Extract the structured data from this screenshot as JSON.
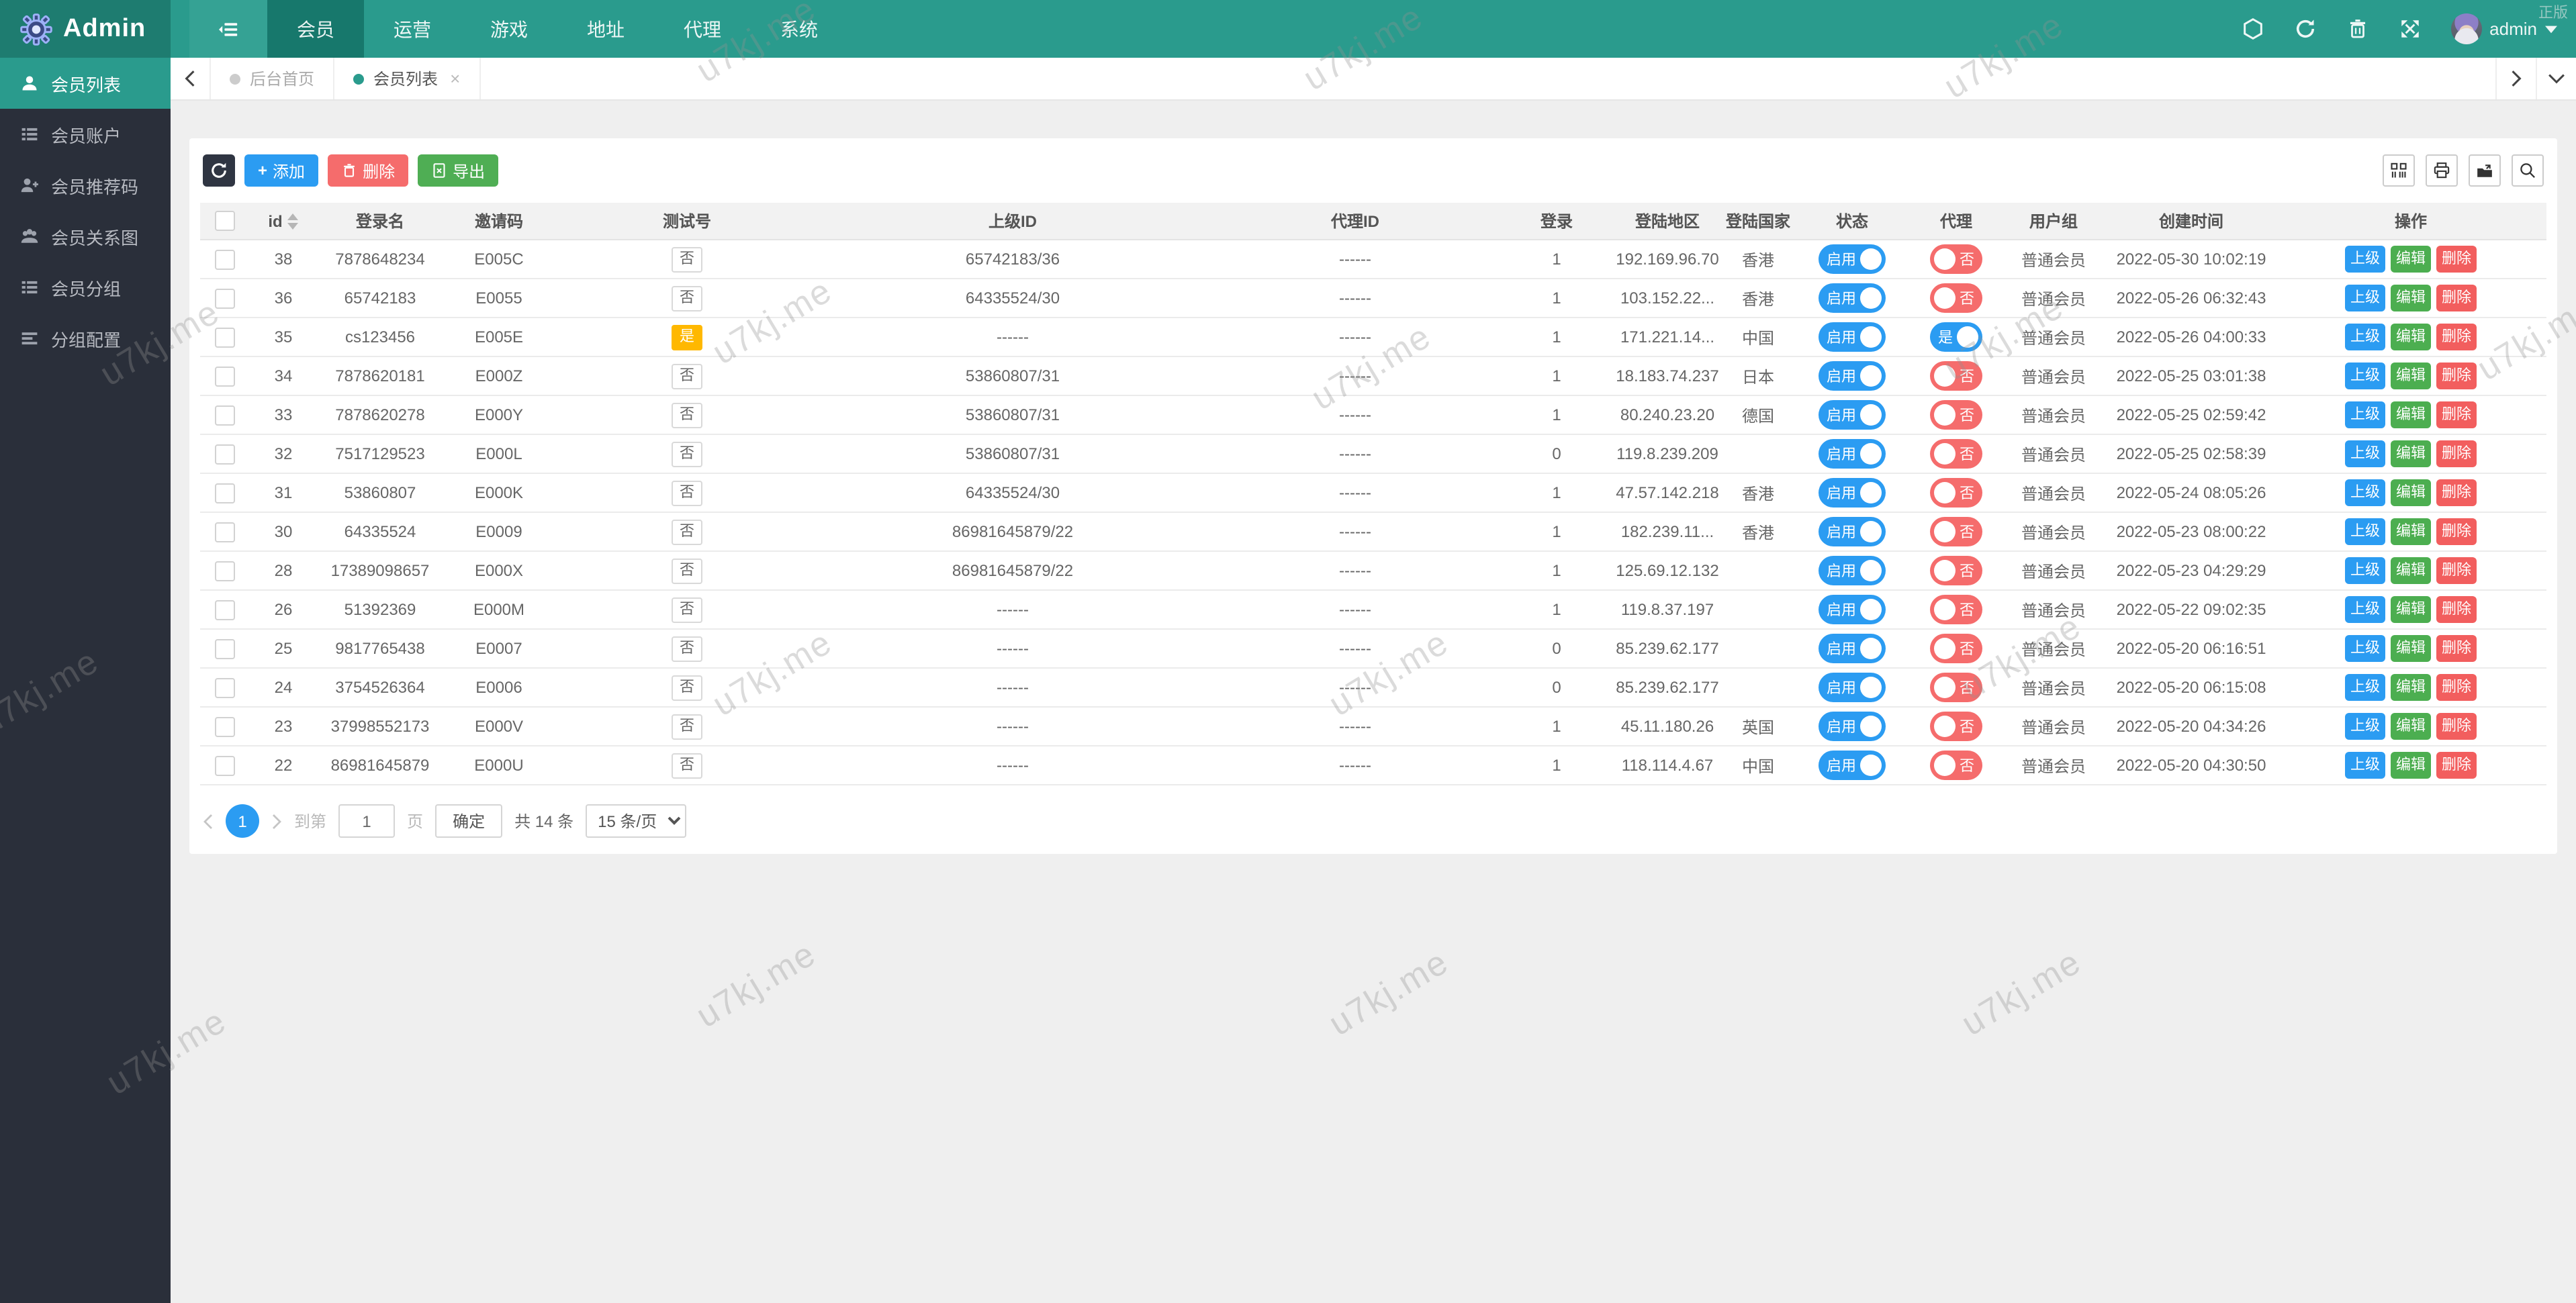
{
  "watermark": {
    "text": "u7kj.me",
    "corner": "正版"
  },
  "colors": {
    "navbar": "#2a9b8d",
    "navbar_dark": "#17786c",
    "logo_zone": "#1e7c70",
    "sidebar": "#2a2f3a",
    "accent_teal": "#2a9b8d",
    "blue": "#2b9cf2",
    "green": "#4fae54",
    "red": "#f56c6c",
    "orange": "#ffb800",
    "toolbar_dark": "#2f3542",
    "content_bg": "#efefef"
  },
  "navbar": {
    "brand": "Admin",
    "menu": [
      {
        "label": "会员"
      },
      {
        "label": "运营"
      },
      {
        "label": "游戏"
      },
      {
        "label": "地址"
      },
      {
        "label": "代理"
      },
      {
        "label": "系统"
      }
    ],
    "user": "admin"
  },
  "sidebar": {
    "items": [
      {
        "label": "会员列表"
      },
      {
        "label": "会员账户"
      },
      {
        "label": "会员推荐码"
      },
      {
        "label": "会员关系图"
      },
      {
        "label": "会员分组"
      },
      {
        "label": "分组配置"
      }
    ]
  },
  "tabs": {
    "items": [
      {
        "label": "后台首页"
      },
      {
        "label": "会员列表"
      }
    ],
    "close_glyph": "×"
  },
  "toolbar": {
    "add": "添加",
    "add_plus": "+",
    "delete": "删除",
    "export": "导出"
  },
  "table": {
    "columns": [
      "id",
      "登录名",
      "邀请码",
      "测试号",
      "上级ID",
      "代理ID",
      "登录",
      "登陆地区",
      "登陆国家",
      "状态",
      "代理",
      "用户组",
      "创建时间",
      "操作"
    ],
    "actions": [
      "上级",
      "编辑",
      "删除"
    ],
    "rows": [
      {
        "id": "38",
        "name": "7878648234",
        "invite": "E005C",
        "test": "否",
        "parent": "65742183/36",
        "agent_id": "------",
        "login": "1",
        "region": "192.169.96.70",
        "country": "香港",
        "status_on": true,
        "status_label": "启用",
        "agent_on": false,
        "agent_label": "否",
        "group": "普通会员",
        "created": "2022-05-30 10:02:19"
      },
      {
        "id": "36",
        "name": "65742183",
        "invite": "E0055",
        "test": "否",
        "parent": "64335524/30",
        "agent_id": "------",
        "login": "1",
        "region": "103.152.22...",
        "country": "香港",
        "status_on": true,
        "status_label": "启用",
        "agent_on": false,
        "agent_label": "否",
        "group": "普通会员",
        "created": "2022-05-26 06:32:43"
      },
      {
        "id": "35",
        "name": "cs123456",
        "invite": "E005E",
        "test": "是",
        "parent": "------",
        "agent_id": "------",
        "login": "1",
        "region": "171.221.14...",
        "country": "中国",
        "status_on": true,
        "status_label": "启用",
        "agent_on": true,
        "agent_label": "是",
        "group": "普通会员",
        "created": "2022-05-26 04:00:33"
      },
      {
        "id": "34",
        "name": "7878620181",
        "invite": "E000Z",
        "test": "否",
        "parent": "53860807/31",
        "agent_id": "------",
        "login": "1",
        "region": "18.183.74.237",
        "country": "日本",
        "status_on": true,
        "status_label": "启用",
        "agent_on": false,
        "agent_label": "否",
        "group": "普通会员",
        "created": "2022-05-25 03:01:38"
      },
      {
        "id": "33",
        "name": "7878620278",
        "invite": "E000Y",
        "test": "否",
        "parent": "53860807/31",
        "agent_id": "------",
        "login": "1",
        "region": "80.240.23.20",
        "country": "德国",
        "status_on": true,
        "status_label": "启用",
        "agent_on": false,
        "agent_label": "否",
        "group": "普通会员",
        "created": "2022-05-25 02:59:42"
      },
      {
        "id": "32",
        "name": "7517129523",
        "invite": "E000L",
        "test": "否",
        "parent": "53860807/31",
        "agent_id": "------",
        "login": "0",
        "region": "119.8.239.209",
        "country": "",
        "status_on": true,
        "status_label": "启用",
        "agent_on": false,
        "agent_label": "否",
        "group": "普通会员",
        "created": "2022-05-25 02:58:39"
      },
      {
        "id": "31",
        "name": "53860807",
        "invite": "E000K",
        "test": "否",
        "parent": "64335524/30",
        "agent_id": "------",
        "login": "1",
        "region": "47.57.142.218",
        "country": "香港",
        "status_on": true,
        "status_label": "启用",
        "agent_on": false,
        "agent_label": "否",
        "group": "普通会员",
        "created": "2022-05-24 08:05:26"
      },
      {
        "id": "30",
        "name": "64335524",
        "invite": "E0009",
        "test": "否",
        "parent": "86981645879/22",
        "agent_id": "------",
        "login": "1",
        "region": "182.239.11...",
        "country": "香港",
        "status_on": true,
        "status_label": "启用",
        "agent_on": false,
        "agent_label": "否",
        "group": "普通会员",
        "created": "2022-05-23 08:00:22"
      },
      {
        "id": "28",
        "name": "17389098657",
        "invite": "E000X",
        "test": "否",
        "parent": "86981645879/22",
        "agent_id": "------",
        "login": "1",
        "region": "125.69.12.132",
        "country": "",
        "status_on": true,
        "status_label": "启用",
        "agent_on": false,
        "agent_label": "否",
        "group": "普通会员",
        "created": "2022-05-23 04:29:29"
      },
      {
        "id": "26",
        "name": "51392369",
        "invite": "E000M",
        "test": "否",
        "parent": "------",
        "agent_id": "------",
        "login": "1",
        "region": "119.8.37.197",
        "country": "",
        "status_on": true,
        "status_label": "启用",
        "agent_on": false,
        "agent_label": "否",
        "group": "普通会员",
        "created": "2022-05-22 09:02:35"
      },
      {
        "id": "25",
        "name": "9817765438",
        "invite": "E0007",
        "test": "否",
        "parent": "------",
        "agent_id": "------",
        "login": "0",
        "region": "85.239.62.177",
        "country": "",
        "status_on": true,
        "status_label": "启用",
        "agent_on": false,
        "agent_label": "否",
        "group": "普通会员",
        "created": "2022-05-20 06:16:51"
      },
      {
        "id": "24",
        "name": "3754526364",
        "invite": "E0006",
        "test": "否",
        "parent": "------",
        "agent_id": "------",
        "login": "0",
        "region": "85.239.62.177",
        "country": "",
        "status_on": true,
        "status_label": "启用",
        "agent_on": false,
        "agent_label": "否",
        "group": "普通会员",
        "created": "2022-05-20 06:15:08"
      },
      {
        "id": "23",
        "name": "37998552173",
        "invite": "E000V",
        "test": "否",
        "parent": "------",
        "agent_id": "------",
        "login": "1",
        "region": "45.11.180.26",
        "country": "英国",
        "status_on": true,
        "status_label": "启用",
        "agent_on": false,
        "agent_label": "否",
        "group": "普通会员",
        "created": "2022-05-20 04:34:26"
      },
      {
        "id": "22",
        "name": "86981645879",
        "invite": "E000U",
        "test": "否",
        "parent": "------",
        "agent_id": "------",
        "login": "1",
        "region": "118.114.4.67",
        "country": "中国",
        "status_on": true,
        "status_label": "启用",
        "agent_on": false,
        "agent_label": "否",
        "group": "普通会员",
        "created": "2022-05-20 04:30:50"
      }
    ]
  },
  "pagination": {
    "current": "1",
    "jump_prefix": "到第",
    "jump_value": "1",
    "jump_suffix": "页",
    "confirm": "确定",
    "total": "共 14 条",
    "page_size": "15 条/页"
  }
}
